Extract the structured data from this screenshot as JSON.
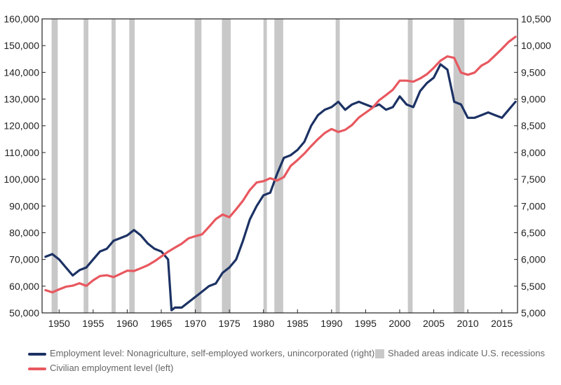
{
  "chart_data": {
    "type": "line",
    "title": "",
    "x_ticks": [
      "1950",
      "1955",
      "1960",
      "1965",
      "1970",
      "1975",
      "1980",
      "1985",
      "1990",
      "1995",
      "2000",
      "2005",
      "2010",
      "2015"
    ],
    "xlim": [
      1947.5,
      2017.3
    ],
    "left_axis": {
      "ylim": [
        50000,
        160000
      ],
      "ticks": [
        "50,000",
        "60,000",
        "70,000",
        "80,000",
        "90,000",
        "100,000",
        "110,000",
        "120,000",
        "130,000",
        "140,000",
        "150,000",
        "160,000"
      ]
    },
    "right_axis": {
      "ylim": [
        5000,
        10500
      ],
      "ticks": [
        "5,000",
        "5,500",
        "6,000",
        "6,500",
        "7,000",
        "7,500",
        "8,000",
        "8,500",
        "9,000",
        "9,500",
        "10,000",
        "10,500"
      ]
    },
    "recessions": [
      [
        1948.9,
        1949.8
      ],
      [
        1953.6,
        1954.3
      ],
      [
        1957.7,
        1958.3
      ],
      [
        1960.3,
        1961.1
      ],
      [
        1969.9,
        1970.9
      ],
      [
        1973.9,
        1975.2
      ],
      [
        1980.0,
        1980.5
      ],
      [
        1981.6,
        1982.9
      ],
      [
        1990.6,
        1991.2
      ],
      [
        2001.2,
        2001.9
      ],
      [
        2007.9,
        2009.5
      ]
    ],
    "series": [
      {
        "name": "Employment level: Nonagriculture, self-employed workers, unincorporated (right)",
        "axis": "right",
        "color": "#1c3264",
        "x": [
          1948,
          1949,
          1950,
          1951,
          1952,
          1953,
          1954,
          1955,
          1956,
          1957,
          1958,
          1959,
          1960,
          1961,
          1962,
          1963,
          1964,
          1965,
          1966,
          1966.5,
          1967,
          1968,
          1969,
          1970,
          1971,
          1972,
          1973,
          1974,
          1975,
          1976,
          1977,
          1978,
          1979,
          1980,
          1981,
          1982,
          1983,
          1984,
          1985,
          1986,
          1987,
          1988,
          1989,
          1990,
          1991,
          1992,
          1993,
          1994,
          1995,
          1996,
          1997,
          1998,
          1999,
          2000,
          2001,
          2002,
          2003,
          2004,
          2005,
          2006,
          2007,
          2008,
          2009,
          2010,
          2011,
          2012,
          2013,
          2014,
          2015,
          2016,
          2017
        ],
        "values": [
          6050,
          6100,
          6000,
          5850,
          5700,
          5800,
          5850,
          6000,
          6150,
          6200,
          6350,
          6400,
          6450,
          6550,
          6450,
          6300,
          6200,
          6150,
          6000,
          5050,
          5100,
          5100,
          5200,
          5300,
          5400,
          5500,
          5550,
          5750,
          5850,
          6000,
          6350,
          6750,
          7000,
          7200,
          7250,
          7600,
          7900,
          7950,
          8050,
          8200,
          8500,
          8700,
          8800,
          8850,
          8950,
          8800,
          8900,
          8950,
          8900,
          8850,
          8900,
          8800,
          8850,
          9050,
          8900,
          8850,
          9150,
          9300,
          9400,
          9650,
          9550,
          8950,
          8900,
          8650,
          8650,
          8700,
          8750,
          8700,
          8650,
          8800,
          8950
        ]
      },
      {
        "name": "Civilian employment level (left)",
        "axis": "left",
        "color": "#e8585f",
        "x": [
          1948,
          1949,
          1950,
          1951,
          1952,
          1953,
          1954,
          1955,
          1956,
          1957,
          1958,
          1959,
          1960,
          1961,
          1962,
          1963,
          1964,
          1965,
          1966,
          1967,
          1968,
          1969,
          1970,
          1971,
          1972,
          1973,
          1974,
          1975,
          1976,
          1977,
          1978,
          1979,
          1980,
          1981,
          1982,
          1983,
          1984,
          1985,
          1986,
          1987,
          1988,
          1989,
          1990,
          1991,
          1992,
          1993,
          1994,
          1995,
          1996,
          1997,
          1998,
          1999,
          2000,
          2001,
          2002,
          2003,
          2004,
          2005,
          2006,
          2007,
          2008,
          2009,
          2010,
          2011,
          2012,
          2013,
          2014,
          2015,
          2016,
          2017
        ],
        "values": [
          58500,
          57700,
          58800,
          59800,
          60200,
          61100,
          60100,
          62200,
          63800,
          64100,
          63400,
          64600,
          65800,
          65700,
          66700,
          67800,
          69300,
          71100,
          72900,
          74400,
          75900,
          77900,
          78700,
          79400,
          82200,
          85100,
          86800,
          85800,
          88800,
          92000,
          96000,
          98800,
          99300,
          100400,
          99500,
          100800,
          105000,
          107200,
          109600,
          112400,
          115000,
          117300,
          118800,
          117700,
          118500,
          120300,
          123100,
          124900,
          126700,
          129600,
          131500,
          133500,
          136900,
          136900,
          136500,
          137700,
          139300,
          141700,
          144400,
          146000,
          145400,
          139900,
          139100,
          139900,
          142500,
          143900,
          146300,
          148800,
          151400,
          153300
        ]
      }
    ],
    "legend": {
      "series1": "Employment level: Nonagriculture, self-employed workers, unincorporated (right)",
      "series2": "Civilian employment level (left)",
      "recession_note": "Shaded areas indicate U.S. recessions"
    },
    "recession_color": "#c8c8c8"
  }
}
